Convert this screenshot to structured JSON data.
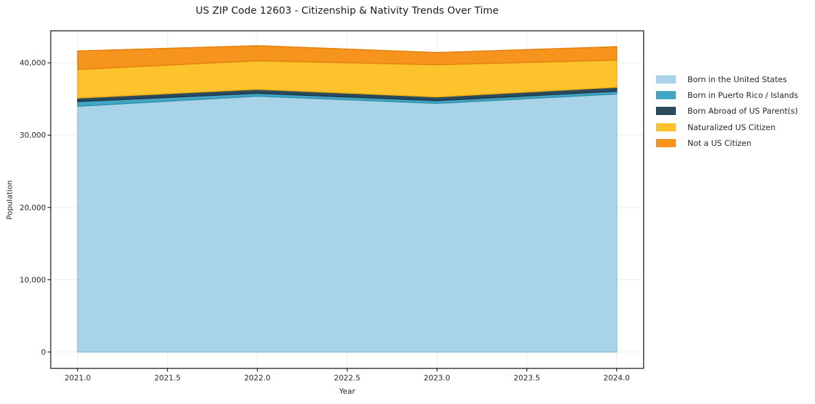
{
  "chart_data": {
    "type": "area",
    "stacked": true,
    "title": "US ZIP Code 12603 - Citizenship & Nativity Trends Over Time",
    "xlabel": "Year",
    "ylabel": "Population",
    "x": [
      2021,
      2022,
      2023,
      2024
    ],
    "series": [
      {
        "name": "Born in the United States",
        "color": "#A8D3E8",
        "edge": "#8CC3DE",
        "values": [
          34000,
          35400,
          34400,
          35700
        ]
      },
      {
        "name": "Born in Puerto Rico / Islands",
        "color": "#41A6C4",
        "edge": "#3592AE",
        "values": [
          650,
          400,
          380,
          380
        ]
      },
      {
        "name": "Born Abroad of US Parent(s)",
        "color": "#2A4A5E",
        "edge": "#1F3A4B",
        "values": [
          500,
          550,
          520,
          560
        ]
      },
      {
        "name": "Naturalized US Citizen",
        "color": "#FDC32C",
        "edge": "#EFAE14",
        "values": [
          3950,
          3950,
          4450,
          3750
        ]
      },
      {
        "name": "Not a US Citizen",
        "color": "#F7941E",
        "edge": "#E3820F",
        "values": [
          2550,
          2080,
          1680,
          1850
        ]
      }
    ],
    "xlim": [
      2020.85,
      2024.15
    ],
    "ylim": [
      -2270,
      44440
    ],
    "x_ticks": [
      2021.0,
      2021.5,
      2022.0,
      2022.5,
      2023.0,
      2023.5,
      2024.0
    ],
    "x_tick_labels": [
      "2021.0",
      "2021.5",
      "2022.0",
      "2022.5",
      "2023.0",
      "2023.5",
      "2024.0"
    ],
    "y_ticks": [
      0,
      10000,
      20000,
      30000,
      40000
    ],
    "y_tick_labels": [
      "0",
      "10,000",
      "20,000",
      "30,000",
      "40,000"
    ],
    "grid": true,
    "grid_color": "#ececec",
    "axis_color": "#1a1a1a",
    "text_color": "#262626",
    "legend_position": "right of plot, frameless"
  }
}
